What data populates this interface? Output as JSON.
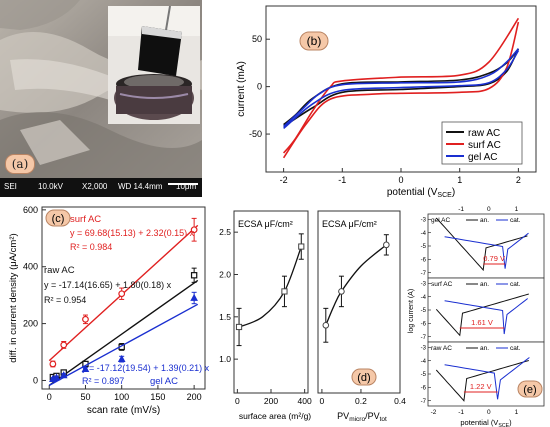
{
  "panel_labels": {
    "a": "(a)",
    "b": "(b)",
    "c": "(c)",
    "d": "(d)",
    "e": "(e)"
  },
  "sem": {
    "l1": "SEI",
    "l2": "10.0kV",
    "l3": "X2,000",
    "l4": "WD 14.4mm",
    "scale": "10μm"
  },
  "colors": {
    "raw": "#111111",
    "surf": "#e02020",
    "gel": "#1a2fd0"
  },
  "chart_data": [
    {
      "id": "b",
      "type": "line",
      "xlabel": "potential (V",
      "xlabel_sub": "SCE",
      "xlabel_end": ")",
      "ylabel": "current (mA)",
      "xlim": [
        -2.3,
        2.3
      ],
      "ylim": [
        -90,
        85
      ],
      "xticks": [
        "-2",
        "-1",
        "0",
        "1",
        "2"
      ],
      "yticks": [
        "-50",
        "0",
        "50"
      ],
      "legend": [
        "raw AC",
        "surf AC",
        "gel AC"
      ],
      "legend_position": "bottom-right",
      "series": [
        {
          "name": "raw AC",
          "upper": [
            [
              -2,
              -40
            ],
            [
              -1.8,
              -30
            ],
            [
              -1.5,
              -12
            ],
            [
              -1,
              3
            ],
            [
              0,
              5
            ],
            [
              1,
              7
            ],
            [
              1.5,
              14
            ],
            [
              1.8,
              25
            ],
            [
              2,
              40
            ]
          ],
          "lower": [
            [
              -2,
              -42
            ],
            [
              -1.5,
              -22
            ],
            [
              -1,
              -6
            ],
            [
              0,
              -3
            ],
            [
              1,
              0
            ],
            [
              1.5,
              3
            ],
            [
              1.8,
              16
            ],
            [
              2,
              40
            ]
          ]
        },
        {
          "name": "surf AC",
          "upper": [
            [
              -2,
              -70
            ],
            [
              -1.8,
              -55
            ],
            [
              -1.5,
              -25
            ],
            [
              -1.2,
              0
            ],
            [
              -1,
              6
            ],
            [
              0,
              10
            ],
            [
              1,
              12
            ],
            [
              1.5,
              26
            ],
            [
              2,
              72
            ]
          ],
          "lower": [
            [
              -2,
              -75
            ],
            [
              -1.6,
              -38
            ],
            [
              -1.2,
              -13
            ],
            [
              -0.5,
              -8
            ],
            [
              0,
              -7
            ],
            [
              1,
              -6
            ],
            [
              1.5,
              -2
            ],
            [
              1.8,
              20
            ],
            [
              2,
              68
            ]
          ]
        },
        {
          "name": "gel AC",
          "upper": [
            [
              -2,
              -42
            ],
            [
              -1.7,
              -25
            ],
            [
              -1.4,
              -8
            ],
            [
              -1,
              2
            ],
            [
              0,
              4
            ],
            [
              1,
              5
            ],
            [
              1.5,
              12
            ],
            [
              1.8,
              26
            ],
            [
              2,
              40
            ]
          ],
          "lower": [
            [
              -2,
              -44
            ],
            [
              -1.5,
              -18
            ],
            [
              -1,
              -4
            ],
            [
              0,
              -1
            ],
            [
              1,
              1
            ],
            [
              1.5,
              4
            ],
            [
              1.8,
              18
            ],
            [
              2,
              38
            ]
          ]
        }
      ]
    },
    {
      "id": "c",
      "type": "scatter",
      "xlabel": "scan rate (mV/s)",
      "ylabel": "diff. in current density (μA/cm²)",
      "xlim": [
        -10,
        215
      ],
      "ylim": [
        -30,
        610
      ],
      "xticks": [
        "0",
        "50",
        "100",
        "150",
        "200"
      ],
      "yticks": [
        "0",
        "200",
        "400",
        "600"
      ],
      "series": [
        {
          "name": "surf AC",
          "x": [
            5,
            20,
            50,
            100,
            200
          ],
          "y": [
            58,
            125,
            215,
            305,
            530
          ],
          "err": [
            10,
            12,
            15,
            20,
            40
          ],
          "fit_slope": 2.32,
          "fit_intercept": 69.68,
          "label": "surf AC",
          "eq": "y = 69.68(15.13) + 2.32(0.15) x",
          "r2": "R² = 0.984"
        },
        {
          "name": "raw AC",
          "x": [
            5,
            10,
            20,
            50,
            100,
            200
          ],
          "y": [
            12,
            16,
            28,
            58,
            118,
            370
          ],
          "err": [
            5,
            5,
            6,
            8,
            12,
            25
          ],
          "fit_slope": 1.8,
          "fit_intercept": -17.14,
          "label": "raw AC",
          "eq": "y = -17.14(16.65) + 1.80(0.18) x",
          "r2": "R² = 0.954"
        },
        {
          "name": "gel AC",
          "x": [
            5,
            10,
            20,
            50,
            100,
            200
          ],
          "y": [
            5,
            10,
            18,
            40,
            75,
            290
          ],
          "err": [
            5,
            5,
            6,
            6,
            10,
            20
          ],
          "fit_slope": 1.39,
          "fit_intercept": -17.12,
          "label": "gel AC",
          "eq": "y = -17.12(19.54) + 1.39(0.21) x",
          "r2": "R² = 0.897"
        }
      ]
    },
    {
      "id": "d1",
      "type": "scatter",
      "xlabel": "surface area (m²/g)",
      "ylabel": "",
      "title": "ECSA  μF/cm²",
      "xlim": [
        -20,
        420
      ],
      "ylim": [
        0.6,
        2.75
      ],
      "xticks": [
        "0",
        "200",
        "400"
      ],
      "yticks": [
        "1.0",
        "1.5",
        "2.0",
        "2.5"
      ],
      "x": [
        10,
        280,
        380
      ],
      "y": [
        1.38,
        1.8,
        2.33
      ],
      "err": [
        0.22,
        0.18,
        0.15
      ],
      "curve": [
        [
          10,
          1.38
        ],
        [
          150,
          1.5
        ],
        [
          280,
          1.8
        ],
        [
          380,
          2.33
        ]
      ]
    },
    {
      "id": "d2",
      "type": "scatter",
      "xlabel": "PV",
      "xlabel_sub": "micro",
      "xlabel_mid": "/PV",
      "xlabel_sub2": "tot",
      "ylabel": "",
      "title": "ECSA  μF/cm²",
      "xlim": [
        -0.02,
        0.4
      ],
      "ylim": [
        0.6,
        2.75
      ],
      "xticks": [
        "0",
        "0.2",
        "0.4"
      ],
      "x": [
        0.02,
        0.1,
        0.33
      ],
      "y": [
        1.4,
        1.8,
        2.35
      ],
      "err": [
        0.2,
        0.18,
        0.12
      ],
      "curve": [
        [
          0.02,
          1.4
        ],
        [
          0.06,
          1.62
        ],
        [
          0.1,
          1.8
        ],
        [
          0.2,
          2.1
        ],
        [
          0.33,
          2.35
        ]
      ]
    },
    {
      "id": "e",
      "type": "line",
      "xlabel": "potential (V",
      "xlabel_sub": "SCE",
      "xlabel_end": ")",
      "ylabel": "log current (A)",
      "xlim": [
        -2.2,
        2.0
      ],
      "xticks": [
        "-2",
        "-1",
        "0",
        "1"
      ],
      "sub_yticks": [
        "-3",
        "-4",
        "-5",
        "-6",
        "-7"
      ],
      "sub_ylim": [
        -7.4,
        -2.6
      ],
      "top_xticks": [
        "-1",
        "0",
        "1"
      ],
      "panels": [
        {
          "name": "gel AC",
          "legend": [
            "gel AC",
            "an.",
            "cat."
          ],
          "gap": "0.79 V",
          "an_min": -0.2,
          "cat_min": 0.59,
          "depth": -6.8
        },
        {
          "name": "surf AC",
          "legend": [
            "surf AC",
            "an.",
            "cat."
          ],
          "gap": "1.61 V",
          "an_min": -1.05,
          "cat_min": 0.56,
          "depth": -6.9
        },
        {
          "name": "raw AC",
          "legend": [
            "raw AC",
            "an.",
            "cat."
          ],
          "gap": "1.22 V",
          "an_min": -0.9,
          "cat_min": 0.32,
          "depth": -7.0
        }
      ]
    }
  ]
}
